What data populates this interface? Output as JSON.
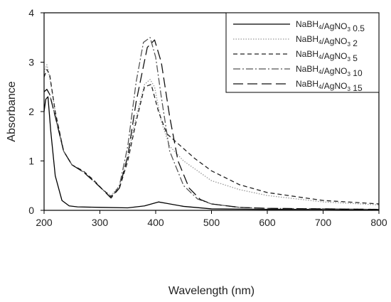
{
  "chart_data": {
    "type": "line",
    "xlabel": "Wavelength (nm)",
    "ylabel": "Absorbance",
    "xlim": [
      200,
      800
    ],
    "ylim": [
      0,
      4
    ],
    "xticks": [
      200,
      300,
      400,
      500,
      600,
      700,
      800
    ],
    "yticks": [
      0,
      1,
      2,
      3,
      4
    ],
    "grid": false,
    "legend_position": "top-right",
    "series": [
      {
        "name": "NaBH4/AgNO3 0.5",
        "legend": {
          "a": "NaBH",
          "s1": "4",
          "b": "/AgNO",
          "s2": "3",
          "c": " 0.5"
        },
        "color": "#000000",
        "dash": "solid",
        "x": [
          200,
          203,
          207,
          212,
          220,
          232,
          245,
          260,
          300,
          350,
          380,
          405,
          420,
          450,
          500,
          600,
          700,
          800
        ],
        "y": [
          2.0,
          2.25,
          2.3,
          1.6,
          0.7,
          0.2,
          0.09,
          0.07,
          0.06,
          0.05,
          0.09,
          0.17,
          0.14,
          0.08,
          0.03,
          0.02,
          0.02,
          0.01
        ]
      },
      {
        "name": "NaBH4/AgNO3 2",
        "legend": {
          "a": "NaBH",
          "s1": "4",
          "b": "/AgNO",
          "s2": "3",
          "c": " 2"
        },
        "color": "#999999",
        "dash": "dotted",
        "x": [
          200,
          205,
          210,
          220,
          235,
          250,
          270,
          290,
          305,
          320,
          335,
          350,
          365,
          380,
          390,
          398,
          410,
          425,
          450,
          500,
          550,
          600,
          700,
          800
        ],
        "y": [
          2.8,
          2.95,
          2.7,
          2.0,
          1.2,
          0.92,
          0.78,
          0.58,
          0.42,
          0.3,
          0.5,
          1.1,
          1.9,
          2.55,
          2.65,
          2.5,
          1.8,
          1.3,
          1.0,
          0.6,
          0.42,
          0.3,
          0.17,
          0.11
        ]
      },
      {
        "name": "NaBH4/AgNO3 5",
        "legend": {
          "a": "NaBH",
          "s1": "4",
          "b": "/AgNO",
          "s2": "3",
          "c": " 5"
        },
        "color": "#222222",
        "dash": "short",
        "x": [
          200,
          205,
          210,
          220,
          235,
          250,
          270,
          290,
          305,
          320,
          335,
          350,
          365,
          380,
          392,
          405,
          420,
          435,
          450,
          470,
          500,
          550,
          600,
          700,
          800
        ],
        "y": [
          2.7,
          2.85,
          2.75,
          2.0,
          1.2,
          0.92,
          0.8,
          0.6,
          0.42,
          0.28,
          0.45,
          1.0,
          1.8,
          2.5,
          2.55,
          2.0,
          1.55,
          1.4,
          1.25,
          1.05,
          0.8,
          0.52,
          0.36,
          0.2,
          0.13
        ]
      },
      {
        "name": "NaBH4/AgNO3 10",
        "legend": {
          "a": "NaBH",
          "s1": "4",
          "b": "/AgNO",
          "s2": "3",
          "c": " 10"
        },
        "color": "#555555",
        "dash": "dashdot",
        "x": [
          200,
          205,
          210,
          220,
          235,
          250,
          270,
          290,
          305,
          320,
          335,
          350,
          365,
          378,
          390,
          400,
          410,
          425,
          450,
          475,
          500,
          550,
          600,
          700,
          800
        ],
        "y": [
          2.4,
          2.45,
          2.35,
          1.9,
          1.2,
          0.92,
          0.78,
          0.58,
          0.42,
          0.25,
          0.5,
          1.3,
          2.6,
          3.4,
          3.5,
          3.1,
          2.3,
          1.2,
          0.5,
          0.23,
          0.13,
          0.06,
          0.04,
          0.03,
          0.02
        ]
      },
      {
        "name": "NaBH4/AgNO3 15",
        "legend": {
          "a": "NaBH",
          "s1": "4",
          "b": "/AgNO",
          "s2": "3",
          "c": " 15"
        },
        "color": "#111111",
        "dash": "long",
        "x": [
          200,
          205,
          210,
          220,
          235,
          250,
          270,
          290,
          305,
          320,
          335,
          350,
          365,
          385,
          398,
          410,
          425,
          440,
          460,
          480,
          500,
          550,
          600,
          700,
          800
        ],
        "y": [
          2.4,
          2.45,
          2.35,
          1.9,
          1.2,
          0.92,
          0.78,
          0.58,
          0.42,
          0.25,
          0.45,
          1.1,
          2.2,
          3.3,
          3.45,
          3.0,
          1.9,
          1.0,
          0.45,
          0.22,
          0.13,
          0.06,
          0.04,
          0.03,
          0.02
        ]
      }
    ]
  }
}
